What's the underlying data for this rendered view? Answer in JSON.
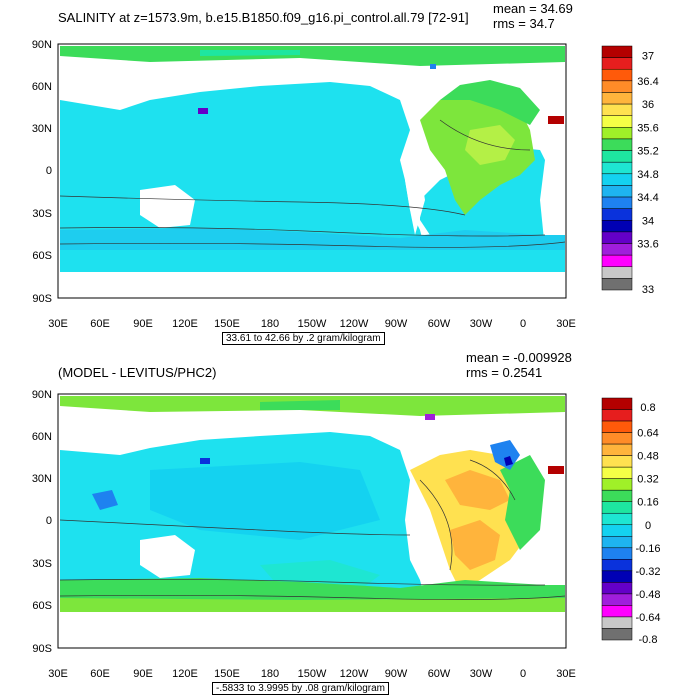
{
  "panels": [
    {
      "title": "SALINITY at z=1573.9m, b.e15.B1850.f09_g16.pi_control.all.79 [72-91]",
      "mean": "mean = 34.69",
      "rms": "rms = 34.7",
      "contour_info": "33.61 to 42.66 by .2 gram/kilogram",
      "colorbar_labels": [
        "37",
        "36.4",
        "36",
        "35.6",
        "35.2",
        "34.8",
        "34.4",
        "34",
        "33.6",
        "33"
      ],
      "colorbar_colors": [
        "#b40000",
        "#e61e1e",
        "#ff5a0a",
        "#ff8c28",
        "#ffb43c",
        "#ffe150",
        "#f5ff46",
        "#a0f028",
        "#3cdc5a",
        "#1ee6a0",
        "#1ee6d2",
        "#14d2f0",
        "#1eb4f0",
        "#1e82f0",
        "#0a32dc",
        "#0000b4",
        "#6400c8",
        "#a01edc",
        "#ff00ff",
        "#c8c8c8",
        "#707070"
      ]
    },
    {
      "title": "(MODEL - LEVITUS/PHC2)",
      "mean": "mean = -0.009928",
      "rms": "rms = 0.2541",
      "contour_info": "-.5833 to 3.9995 by .08 gram/kilogram",
      "colorbar_labels": [
        "0.8",
        "0.64",
        "0.48",
        "0.32",
        "0.16",
        "0",
        "-0.16",
        "-0.32",
        "-0.48",
        "-0.64",
        "-0.8"
      ],
      "colorbar_colors": [
        "#b40000",
        "#e61e1e",
        "#ff5a0a",
        "#ff8c28",
        "#ffb43c",
        "#ffe150",
        "#f5ff46",
        "#a0f028",
        "#3cdc5a",
        "#1ee6a0",
        "#1ee6d2",
        "#14d2f0",
        "#1eb4f0",
        "#1e82f0",
        "#0a32dc",
        "#0000b4",
        "#6400c8",
        "#a01edc",
        "#ff00ff",
        "#c8c8c8",
        "#707070"
      ]
    }
  ],
  "axes": {
    "lat_labels": [
      "90N",
      "60N",
      "30N",
      "0",
      "30S",
      "60S",
      "90S"
    ],
    "lon_labels": [
      "30E",
      "60E",
      "90E",
      "120E",
      "150E",
      "180",
      "150W",
      "120W",
      "90W",
      "60W",
      "30W",
      "0",
      "30E"
    ]
  }
}
